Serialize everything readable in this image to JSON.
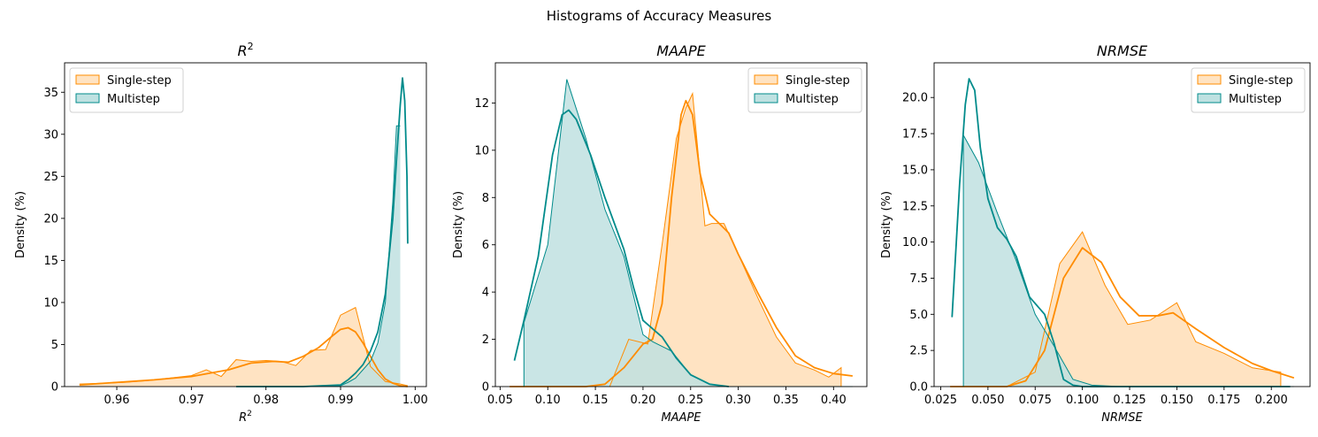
{
  "suptitle": "Histograms of Accuracy Measures",
  "colors": {
    "single": "#ff8c00",
    "single_fill": "#ffe3c2",
    "multi": "#008b8b",
    "multi_fill": "#bfe1e1"
  },
  "chart_data": [
    {
      "type": "area",
      "title": "R",
      "title_sup": "2",
      "xlabel": "R",
      "xlabel_sup": "2",
      "ylabel": "Density (%)",
      "xlim": [
        0.953,
        1.0015
      ],
      "ylim": [
        0,
        38.5
      ],
      "xticks": [
        0.96,
        0.97,
        0.98,
        0.99,
        1.0
      ],
      "xtick_labels": [
        "0.96",
        "0.97",
        "0.98",
        "0.99",
        "1.00"
      ],
      "yticks": [
        0,
        5,
        10,
        15,
        20,
        25,
        30,
        35
      ],
      "ytick_labels": [
        "0",
        "5",
        "10",
        "15",
        "20",
        "25",
        "30",
        "35"
      ],
      "legend_position": "upper-left",
      "legend": [
        "Single-step",
        "Multistep"
      ],
      "series": [
        {
          "name": "Single-step",
          "hist": [
            [
              0.955,
              0.3
            ],
            [
              0.958,
              0.4
            ],
            [
              0.961,
              0.5
            ],
            [
              0.964,
              0.7
            ],
            [
              0.967,
              1.0
            ],
            [
              0.97,
              1.3
            ],
            [
              0.972,
              2.0
            ],
            [
              0.974,
              1.2
            ],
            [
              0.976,
              3.2
            ],
            [
              0.978,
              3.0
            ],
            [
              0.98,
              3.1
            ],
            [
              0.982,
              3.0
            ],
            [
              0.984,
              2.5
            ],
            [
              0.986,
              4.3
            ],
            [
              0.988,
              4.4
            ],
            [
              0.99,
              8.5
            ],
            [
              0.992,
              9.4
            ],
            [
              0.994,
              2.4
            ],
            [
              0.996,
              0.6
            ],
            [
              0.998,
              0.3
            ],
            [
              0.999,
              0.1
            ]
          ],
          "kde": [
            [
              0.955,
              0.2
            ],
            [
              0.96,
              0.5
            ],
            [
              0.965,
              0.8
            ],
            [
              0.97,
              1.2
            ],
            [
              0.975,
              2.0
            ],
            [
              0.978,
              2.8
            ],
            [
              0.981,
              3.0
            ],
            [
              0.983,
              2.9
            ],
            [
              0.985,
              3.6
            ],
            [
              0.987,
              4.6
            ],
            [
              0.989,
              6.1
            ],
            [
              0.99,
              6.8
            ],
            [
              0.991,
              7.0
            ],
            [
              0.992,
              6.5
            ],
            [
              0.993,
              5.2
            ],
            [
              0.994,
              3.6
            ],
            [
              0.995,
              2.0
            ],
            [
              0.996,
              0.9
            ],
            [
              0.997,
              0.4
            ],
            [
              0.998,
              0.1
            ],
            [
              0.999,
              0.0
            ]
          ]
        },
        {
          "name": "Multistep",
          "hist": [
            [
              0.976,
              0.0
            ],
            [
              0.985,
              0.0
            ],
            [
              0.99,
              0.1
            ],
            [
              0.991,
              0.5
            ],
            [
              0.992,
              1.0
            ],
            [
              0.993,
              2.0
            ],
            [
              0.994,
              3.0
            ],
            [
              0.995,
              5.2
            ],
            [
              0.996,
              10.0
            ],
            [
              0.997,
              22.0
            ],
            [
              0.9975,
              31.0
            ],
            [
              0.998,
              31.0
            ]
          ],
          "kde": [
            [
              0.976,
              0.0
            ],
            [
              0.985,
              0.0
            ],
            [
              0.99,
              0.2
            ],
            [
              0.991,
              0.8
            ],
            [
              0.992,
              1.6
            ],
            [
              0.993,
              2.6
            ],
            [
              0.994,
              4.2
            ],
            [
              0.995,
              6.5
            ],
            [
              0.996,
              11.0
            ],
            [
              0.997,
              20.0
            ],
            [
              0.9975,
              27.0
            ],
            [
              0.998,
              33.5
            ],
            [
              0.9983,
              36.7
            ],
            [
              0.9986,
              34.0
            ],
            [
              0.9989,
              25.0
            ],
            [
              0.999,
              17.0
            ]
          ]
        }
      ]
    },
    {
      "type": "area",
      "title": "MAAPE",
      "xlabel": "MAAPE",
      "ylabel": "Density (%)",
      "xlim": [
        0.045,
        0.435
      ],
      "ylim": [
        0,
        13.7
      ],
      "xticks": [
        0.05,
        0.1,
        0.15,
        0.2,
        0.25,
        0.3,
        0.35,
        0.4
      ],
      "xtick_labels": [
        "0.05",
        "0.10",
        "0.15",
        "0.20",
        "0.25",
        "0.30",
        "0.35",
        "0.40"
      ],
      "yticks": [
        0,
        2,
        4,
        6,
        8,
        10,
        12
      ],
      "ytick_labels": [
        "0",
        "2",
        "4",
        "6",
        "8",
        "10",
        "12"
      ],
      "legend_position": "upper-right",
      "legend": [
        "Single-step",
        "Multistep"
      ],
      "series": [
        {
          "name": "Single-step",
          "hist": [
            [
              0.165,
              0.0
            ],
            [
              0.185,
              2.0
            ],
            [
              0.205,
              1.8
            ],
            [
              0.22,
              6.0
            ],
            [
              0.235,
              10.5
            ],
            [
              0.245,
              11.8
            ],
            [
              0.252,
              12.4
            ],
            [
              0.265,
              6.8
            ],
            [
              0.272,
              6.9
            ],
            [
              0.285,
              6.9
            ],
            [
              0.3,
              5.6
            ],
            [
              0.32,
              3.8
            ],
            [
              0.34,
              2.1
            ],
            [
              0.36,
              1.0
            ],
            [
              0.38,
              0.7
            ],
            [
              0.395,
              0.4
            ],
            [
              0.408,
              0.8
            ],
            [
              0.408,
              0.0
            ]
          ],
          "kde": [
            [
              0.06,
              0.0
            ],
            [
              0.14,
              0.0
            ],
            [
              0.16,
              0.1
            ],
            [
              0.18,
              0.8
            ],
            [
              0.2,
              1.8
            ],
            [
              0.21,
              2.0
            ],
            [
              0.22,
              3.5
            ],
            [
              0.23,
              8.0
            ],
            [
              0.24,
              11.5
            ],
            [
              0.245,
              12.1
            ],
            [
              0.252,
              11.5
            ],
            [
              0.26,
              9.0
            ],
            [
              0.27,
              7.3
            ],
            [
              0.28,
              6.9
            ],
            [
              0.29,
              6.5
            ],
            [
              0.3,
              5.6
            ],
            [
              0.32,
              4.0
            ],
            [
              0.34,
              2.5
            ],
            [
              0.36,
              1.3
            ],
            [
              0.38,
              0.8
            ],
            [
              0.4,
              0.55
            ],
            [
              0.42,
              0.45
            ]
          ]
        },
        {
          "name": "Multistep",
          "hist": [
            [
              0.075,
              0.0
            ],
            [
              0.075,
              2.7
            ],
            [
              0.1,
              6.0
            ],
            [
              0.12,
              13.0
            ],
            [
              0.14,
              10.5
            ],
            [
              0.16,
              7.5
            ],
            [
              0.18,
              5.5
            ],
            [
              0.2,
              2.2
            ],
            [
              0.21,
              1.9
            ],
            [
              0.23,
              1.5
            ],
            [
              0.25,
              0.5
            ],
            [
              0.27,
              0.1
            ],
            [
              0.29,
              0.0
            ],
            [
              0.42,
              0.0
            ]
          ],
          "kde": [
            [
              0.065,
              1.1
            ],
            [
              0.075,
              2.8
            ],
            [
              0.09,
              5.5
            ],
            [
              0.105,
              9.8
            ],
            [
              0.115,
              11.5
            ],
            [
              0.122,
              11.7
            ],
            [
              0.13,
              11.3
            ],
            [
              0.145,
              9.8
            ],
            [
              0.16,
              8.0
            ],
            [
              0.18,
              5.8
            ],
            [
              0.19,
              4.2
            ],
            [
              0.2,
              2.8
            ],
            [
              0.22,
              2.1
            ],
            [
              0.235,
              1.2
            ],
            [
              0.25,
              0.5
            ],
            [
              0.27,
              0.1
            ],
            [
              0.29,
              0.0
            ]
          ]
        }
      ]
    },
    {
      "type": "area",
      "title": "NRMSE",
      "xlabel": "NRMSE",
      "ylabel": "Density (%)",
      "xlim": [
        0.0215,
        0.2205
      ],
      "ylim": [
        0,
        22.4
      ],
      "xticks": [
        0.025,
        0.05,
        0.075,
        0.1,
        0.125,
        0.15,
        0.175,
        0.2
      ],
      "xtick_labels": [
        "0.025",
        "0.050",
        "0.075",
        "0.100",
        "0.125",
        "0.150",
        "0.175",
        "0.200"
      ],
      "yticks": [
        0,
        2.5,
        5.0,
        7.5,
        10.0,
        12.5,
        15.0,
        17.5,
        20.0
      ],
      "ytick_labels": [
        "0.0",
        "2.5",
        "5.0",
        "7.5",
        "10.0",
        "12.5",
        "15.0",
        "17.5",
        "20.0"
      ],
      "legend_position": "upper-right",
      "legend": [
        "Single-step",
        "Multistep"
      ],
      "series": [
        {
          "name": "Single-step",
          "hist": [
            [
              0.06,
              0.0
            ],
            [
              0.075,
              1.0
            ],
            [
              0.088,
              8.5
            ],
            [
              0.1,
              10.7
            ],
            [
              0.112,
              7.0
            ],
            [
              0.124,
              4.3
            ],
            [
              0.136,
              4.6
            ],
            [
              0.15,
              5.8
            ],
            [
              0.16,
              3.1
            ],
            [
              0.175,
              2.3
            ],
            [
              0.19,
              1.3
            ],
            [
              0.205,
              1.0
            ],
            [
              0.205,
              0.0
            ]
          ],
          "kde": [
            [
              0.03,
              0.0
            ],
            [
              0.06,
              0.0
            ],
            [
              0.07,
              0.4
            ],
            [
              0.08,
              2.5
            ],
            [
              0.09,
              7.5
            ],
            [
              0.1,
              9.6
            ],
            [
              0.11,
              8.6
            ],
            [
              0.12,
              6.2
            ],
            [
              0.13,
              4.9
            ],
            [
              0.14,
              4.9
            ],
            [
              0.148,
              5.1
            ],
            [
              0.16,
              4.0
            ],
            [
              0.175,
              2.7
            ],
            [
              0.19,
              1.6
            ],
            [
              0.2,
              1.1
            ],
            [
              0.212,
              0.6
            ]
          ]
        },
        {
          "name": "Multistep",
          "hist": [
            [
              0.037,
              0.0
            ],
            [
              0.037,
              17.4
            ],
            [
              0.045,
              15.5
            ],
            [
              0.055,
              12.0
            ],
            [
              0.065,
              8.7
            ],
            [
              0.075,
              5.0
            ],
            [
              0.085,
              2.8
            ],
            [
              0.095,
              0.5
            ],
            [
              0.105,
              0.1
            ],
            [
              0.12,
              0.0
            ],
            [
              0.212,
              0.0
            ]
          ],
          "kde": [
            [
              0.031,
              4.8
            ],
            [
              0.035,
              14.0
            ],
            [
              0.038,
              19.5
            ],
            [
              0.04,
              21.3
            ],
            [
              0.043,
              20.5
            ],
            [
              0.046,
              16.5
            ],
            [
              0.05,
              13.0
            ],
            [
              0.055,
              11.0
            ],
            [
              0.06,
              10.2
            ],
            [
              0.065,
              9.0
            ],
            [
              0.072,
              6.2
            ],
            [
              0.08,
              5.0
            ],
            [
              0.085,
              3.0
            ],
            [
              0.09,
              0.5
            ],
            [
              0.095,
              0.1
            ],
            [
              0.1,
              0.0
            ],
            [
              0.12,
              0.0
            ],
            [
              0.21,
              0.0
            ]
          ]
        }
      ]
    }
  ]
}
